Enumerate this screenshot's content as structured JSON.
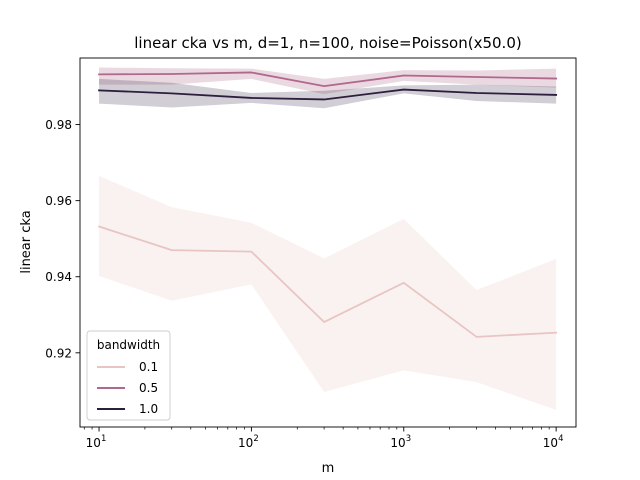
{
  "chart_data": {
    "type": "line",
    "title": "linear cka vs m, d=1, n=100, noise=Poisson(x50.0)",
    "xlabel": "m",
    "ylabel": "linear cka",
    "xscale": "log",
    "xlim": [
      7.5,
      13500
    ],
    "ylim": [
      0.9005,
      0.9975
    ],
    "x": [
      10,
      30,
      100,
      300,
      1000,
      3000,
      10000
    ],
    "x_ticks": [
      {
        "value": 10,
        "base": "10",
        "exp": "1"
      },
      {
        "value": 100,
        "base": "10",
        "exp": "2"
      },
      {
        "value": 1000,
        "base": "10",
        "exp": "3"
      },
      {
        "value": 10000,
        "base": "10",
        "exp": "4"
      }
    ],
    "y_ticks": [
      {
        "value": 0.92,
        "label": "0.92"
      },
      {
        "value": 0.94,
        "label": "0.94"
      },
      {
        "value": 0.96,
        "label": "0.96"
      },
      {
        "value": 0.98,
        "label": "0.98"
      }
    ],
    "legend": {
      "title": "bandwidth",
      "placement": "lower-left"
    },
    "grid": false,
    "series": [
      {
        "name": "0.1",
        "color": "#e8c5c2",
        "band_color": "#eccfca",
        "band_opacity": 0.28,
        "values": [
          0.9532,
          0.947,
          0.9466,
          0.9281,
          0.9384,
          0.9242,
          0.9253
        ],
        "ci_lower": [
          0.9402,
          0.9337,
          0.938,
          0.9097,
          0.9154,
          0.9123,
          0.905
        ],
        "ci_upper": [
          0.9665,
          0.9583,
          0.9542,
          0.9448,
          0.9552,
          0.9365,
          0.9447
        ]
      },
      {
        "name": "0.5",
        "color": "#b0698d",
        "band_color": "#b0698d",
        "band_opacity": 0.25,
        "values": [
          0.9932,
          0.9933,
          0.9937,
          0.9901,
          0.9929,
          0.9925,
          0.9921
        ],
        "ci_lower": [
          0.9905,
          0.9905,
          0.992,
          0.988,
          0.9915,
          0.9905,
          0.9897
        ],
        "ci_upper": [
          0.995,
          0.9948,
          0.9947,
          0.992,
          0.9943,
          0.9942,
          0.9947
        ]
      },
      {
        "name": "1.0",
        "color": "#2d1e3e",
        "band_color": "#2d1e3e",
        "band_opacity": 0.22,
        "values": [
          0.989,
          0.9882,
          0.987,
          0.9866,
          0.9892,
          0.9883,
          0.9878
        ],
        "ci_lower": [
          0.9855,
          0.9845,
          0.9857,
          0.9843,
          0.9882,
          0.9862,
          0.9855
        ],
        "ci_upper": [
          0.992,
          0.991,
          0.9883,
          0.9889,
          0.9903,
          0.9905,
          0.99
        ]
      }
    ]
  }
}
